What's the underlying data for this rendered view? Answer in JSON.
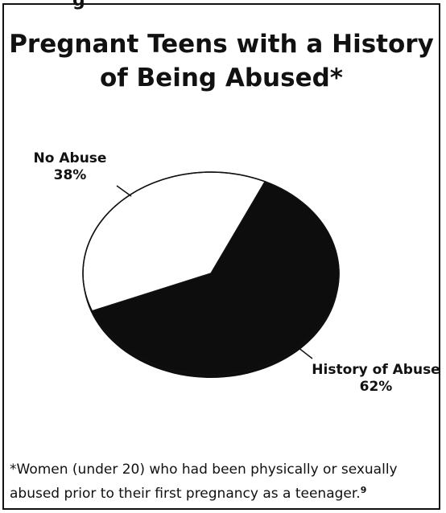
{
  "page_header_fragment": "g",
  "chart_data": {
    "type": "pie",
    "title": "Pregnant Teens with a History of Being Abused*",
    "slices": [
      {
        "label": "History of Abuse",
        "value": 62,
        "value_label": "62%",
        "color": "#0d0d0d"
      },
      {
        "label": "No Abuse",
        "value": 38,
        "value_label": "38%",
        "color": "#ffffff"
      }
    ],
    "footnote": "*Women (under 20) who had  been physically or sexually abused prior to their first pregnancy as a teenager.",
    "footnote_ref": "9"
  }
}
